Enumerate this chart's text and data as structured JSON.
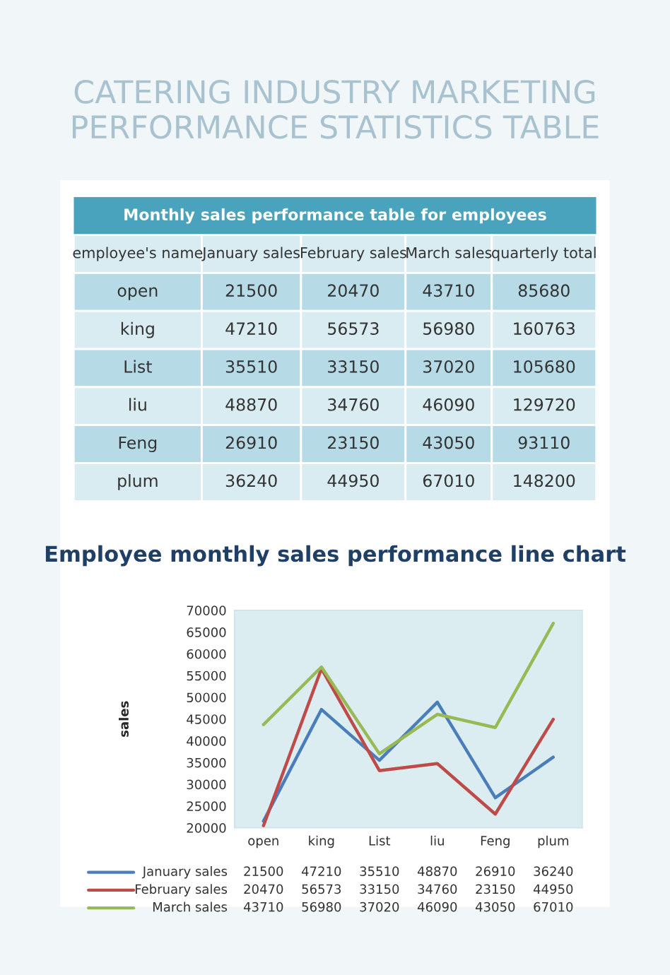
{
  "chart_data": [
    {
      "type": "other",
      "title": "CATERING INDUSTRY MARKETING PERFORMANCE STATISTICS TABLE",
      "subtitle": "Monthly sales performance table for employees",
      "annotations": [
        "employee's name",
        "January sales",
        "February sales",
        "March sales",
        "quarterly total",
        "open",
        "21500",
        "20470",
        "43710",
        "85680",
        "king",
        "47210",
        "56573",
        "56980",
        "160763",
        "List",
        "35510",
        "33150",
        "37020",
        "105680",
        "liu",
        "48870",
        "34760",
        "46090",
        "129720",
        "Feng",
        "26910",
        "23150",
        "43050",
        "93110",
        "plum",
        "36240",
        "44950",
        "67010",
        "148200"
      ]
    },
    {
      "type": "line",
      "title": "Employee monthly sales performance line chart",
      "ylabel": "sales",
      "categories": [
        "open",
        "king",
        "List",
        "liu",
        "Feng",
        "plum"
      ],
      "series": [
        {
          "name": "January sales",
          "color": "#4a7ebb",
          "values": [
            21500,
            47210,
            35510,
            48870,
            26910,
            36240
          ]
        },
        {
          "name": "February sales",
          "color": "#be4b48",
          "values": [
            20470,
            56573,
            33150,
            34760,
            23150,
            44950
          ]
        },
        {
          "name": "March sales",
          "color": "#98b954",
          "values": [
            43710,
            56980,
            37020,
            46090,
            43050,
            67010
          ]
        }
      ],
      "ylim": [
        20000,
        70000
      ],
      "yticks": [
        20000,
        25000,
        30000,
        35000,
        40000,
        45000,
        50000,
        55000,
        60000,
        65000,
        70000
      ],
      "data_labels": true,
      "legend": "bottom",
      "marker": "none",
      "line_style": "solid"
    }
  ]
}
